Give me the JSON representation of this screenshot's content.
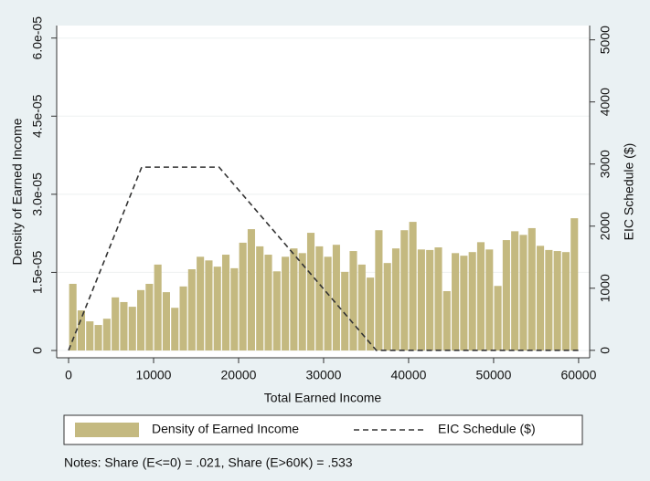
{
  "chart_data": {
    "type": "histogram",
    "ylabel": "Density of Earned Income",
    "y2label": "EIC Schedule ($)",
    "xlabel": "Total Earned Income",
    "notes": "Notes: Share (E<=0) = .021, Share (E>60K) = .533",
    "xlim": [
      -1400,
      61300
    ],
    "xticks": [
      0,
      10000,
      20000,
      30000,
      40000,
      50000,
      60000
    ],
    "ylim": [
      -1.4e-06,
      6.24e-05
    ],
    "yticks": [
      0,
      {
        "value": 1.5e-05,
        "label": "1.5e-05"
      },
      {
        "value": 3e-05,
        "label": "3.0e-05"
      },
      {
        "value": 4.5e-05,
        "label": "4.5e-05"
      },
      {
        "value": 6e-05,
        "label": "6.0e-05"
      }
    ],
    "y2lim": [
      -120,
      5230
    ],
    "y2ticks": [
      0,
      1000,
      2000,
      3000,
      4000,
      5000
    ],
    "grid": true,
    "series": [
      {
        "name": "Density of Earned Income",
        "type": "histogram",
        "color": "#c4b980",
        "bins": [
          0,
          1000,
          2000,
          3000,
          4000,
          5000,
          6000,
          7000,
          8000,
          9000,
          10000,
          11000,
          12000,
          13000,
          14000,
          15000,
          16000,
          17000,
          18000,
          19000,
          20000,
          21000,
          22000,
          23000,
          24000,
          25000,
          26000,
          27000,
          28000,
          29000,
          30000,
          31000,
          32000,
          33000,
          34000,
          35000,
          36000,
          37000,
          38000,
          39000,
          40000,
          41000,
          42000,
          43000,
          44000,
          45000,
          46000,
          47000,
          48000,
          49000,
          50000,
          51000,
          52000,
          53000,
          54000,
          55000,
          56000,
          57000,
          58000,
          59000,
          60000
        ],
        "values": [
          1.28e-05,
          7.7e-06,
          5.6e-06,
          4.9e-06,
          6.1e-06,
          1.02e-05,
          9.3e-06,
          8.4e-06,
          1.16e-05,
          1.28e-05,
          1.65e-05,
          1.12e-05,
          8.2e-06,
          1.23e-05,
          1.56e-05,
          1.8e-05,
          1.73e-05,
          1.61e-05,
          1.84e-05,
          1.58e-05,
          2.07e-05,
          2.33e-05,
          2e-05,
          1.84e-05,
          1.52e-05,
          1.8e-05,
          1.96e-05,
          1.87e-05,
          2.26e-05,
          2e-05,
          1.8e-05,
          2.03e-05,
          1.51e-05,
          1.91e-05,
          1.65e-05,
          1.4e-05,
          2.31e-05,
          1.68e-05,
          1.96e-05,
          2.31e-05,
          2.47e-05,
          1.94e-05,
          1.93e-05,
          1.98e-05,
          1.14e-05,
          1.87e-05,
          1.82e-05,
          1.89e-05,
          2.08e-05,
          1.94e-05,
          1.24e-05,
          2.12e-05,
          2.29e-05,
          2.22e-05,
          2.35e-05,
          2.01e-05,
          1.93e-05,
          1.91e-05,
          1.89e-05,
          2.54e-05
        ]
      },
      {
        "name": "EIC Schedule ($)",
        "type": "line",
        "axis": "y2",
        "color": "#333333",
        "dashed": true,
        "x": [
          0,
          8600,
          17700,
          36200,
          60000
        ],
        "values": [
          0,
          2950,
          2950,
          0,
          0
        ]
      }
    ]
  }
}
